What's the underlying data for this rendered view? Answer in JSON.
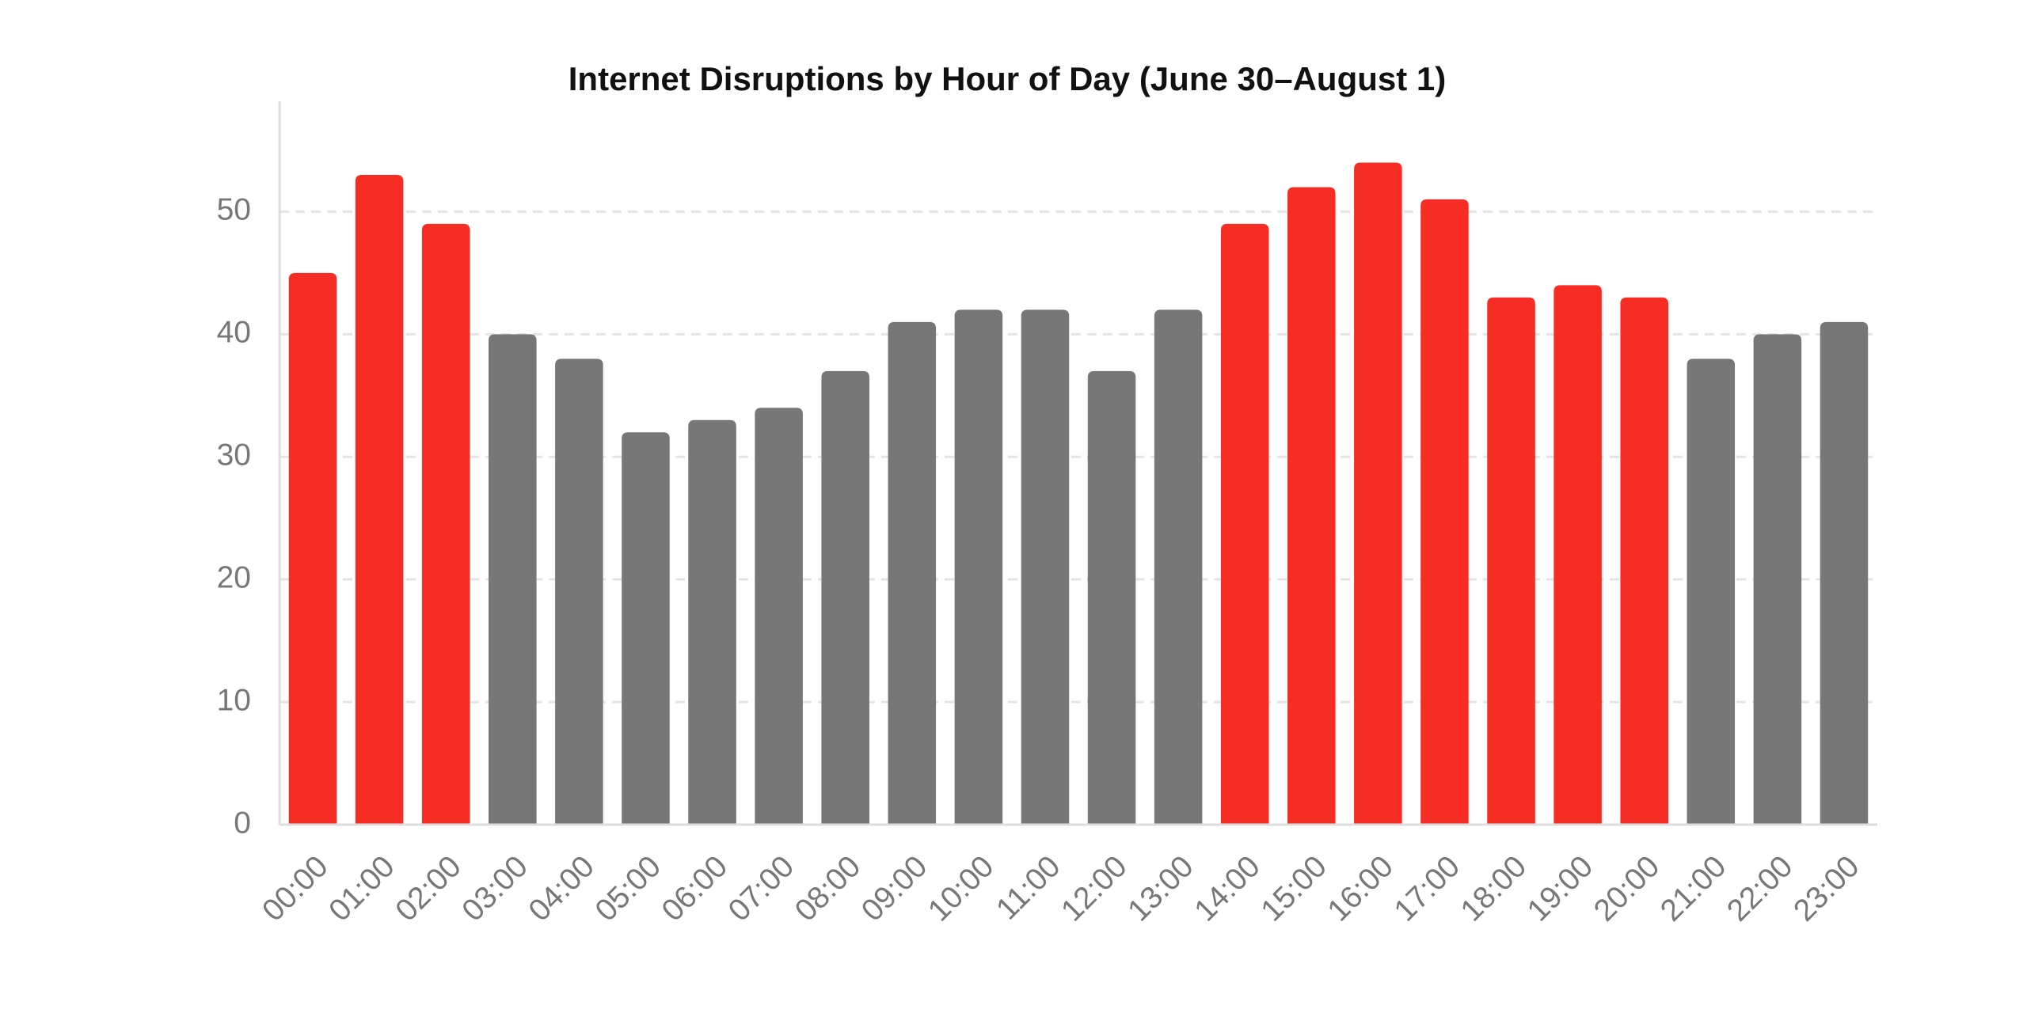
{
  "chart_data": {
    "type": "bar",
    "title": "Internet Disruptions by Hour of Day (June 30–August 1)",
    "categories": [
      "00:00",
      "01:00",
      "02:00",
      "03:00",
      "04:00",
      "05:00",
      "06:00",
      "07:00",
      "08:00",
      "09:00",
      "10:00",
      "11:00",
      "12:00",
      "13:00",
      "14:00",
      "15:00",
      "16:00",
      "17:00",
      "18:00",
      "19:00",
      "20:00",
      "21:00",
      "22:00",
      "23:00"
    ],
    "values": [
      45,
      53,
      49,
      40,
      38,
      32,
      33,
      34,
      37,
      41,
      42,
      42,
      37,
      42,
      49,
      52,
      54,
      51,
      43,
      44,
      43,
      38,
      40,
      41
    ],
    "colors": [
      "#f62d24",
      "#f62d24",
      "#f62d24",
      "#777777",
      "#777777",
      "#777777",
      "#777777",
      "#777777",
      "#777777",
      "#777777",
      "#777777",
      "#777777",
      "#777777",
      "#777777",
      "#f62d24",
      "#f62d24",
      "#f62d24",
      "#f62d24",
      "#f62d24",
      "#f62d24",
      "#f62d24",
      "#777777",
      "#777777",
      "#777777"
    ],
    "ylim": [
      0,
      59
    ],
    "yticks": [
      0,
      10,
      20,
      30,
      40,
      50
    ],
    "grid": true
  }
}
